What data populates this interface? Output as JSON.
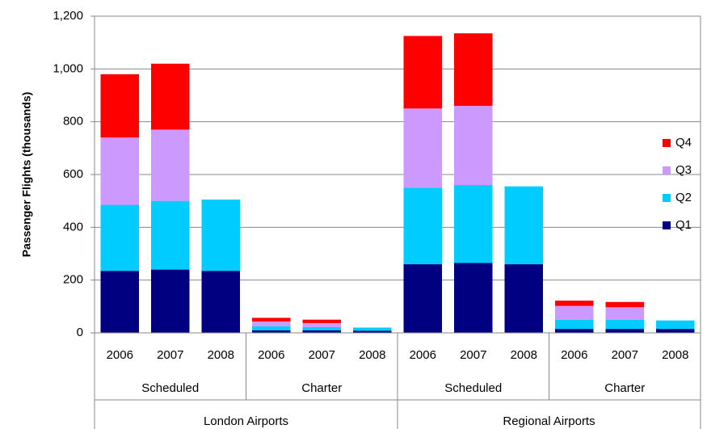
{
  "chart_data": {
    "type": "stacked_bar",
    "y_label": "Passenger Flights (thousands)",
    "categories": [
      "2006",
      "2007",
      "2008",
      "2006",
      "2007",
      "2008",
      "2006",
      "2007",
      "2008",
      "2006",
      "2007",
      "2008"
    ],
    "groups": [
      "Scheduled",
      "Charter",
      "Scheduled",
      "Charter"
    ],
    "super_groups": [
      "London Airports",
      "Regional Airports"
    ],
    "series": [
      {
        "name": "Q1",
        "color": "#000080",
        "values": [
          235,
          240,
          235,
          10,
          10,
          8,
          260,
          265,
          260,
          15,
          15,
          15
        ]
      },
      {
        "name": "Q2",
        "color": "#00ccff",
        "values": [
          250,
          260,
          270,
          15,
          12,
          12,
          290,
          295,
          295,
          35,
          35,
          32
        ]
      },
      {
        "name": "Q3",
        "color": "#cc99ff",
        "values": [
          255,
          270,
          null,
          18,
          15,
          null,
          300,
          300,
          null,
          52,
          47,
          null
        ]
      },
      {
        "name": "Q4",
        "color": "#ff0000",
        "values": [
          240,
          250,
          null,
          14,
          13,
          null,
          275,
          275,
          null,
          20,
          20,
          null
        ]
      }
    ],
    "ylim": [
      0,
      1200
    ],
    "yticks": [
      0,
      200,
      400,
      600,
      800,
      {
        "value": 1000,
        "label": "1,000"
      },
      {
        "value": 1200,
        "label": "1,200"
      }
    ],
    "grid": true,
    "legend": "right"
  }
}
